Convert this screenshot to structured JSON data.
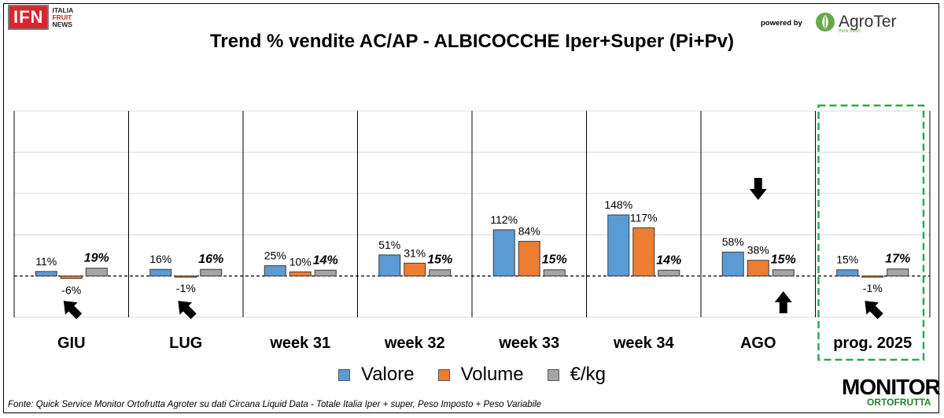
{
  "header": {
    "logo_ifn": "IFN",
    "logo_ifn_sub": [
      "ITALIA",
      "FRUIT",
      "NEWS"
    ],
    "powered_by": "powered by",
    "agroter": "AgroTer",
    "agroter_tag": "think fresh"
  },
  "footer": {
    "source": "Fonte: Quick Service Monitor Ortofrutta Agroter su dati Circana Liquid Data - Totale Italia Iper + super, Peso Imposto + Peso Variabile",
    "monitor_main": "MONITOR",
    "monitor_sub": "ORTOFRUTTA"
  },
  "chart_data": {
    "type": "bar",
    "title": "Trend % vendite AC/AP - ALBICOCCHE  Iper+Super (Pi+Pv)",
    "categories": [
      "GIU",
      "LUG",
      "week 31",
      "week 32",
      "week 33",
      "week 34",
      "AGO",
      "prog. 2025"
    ],
    "series": [
      {
        "name": "Valore",
        "color": "#5b9bd5",
        "values": [
          11,
          16,
          25,
          51,
          112,
          148,
          58,
          15
        ],
        "labels": [
          "11%",
          "16%",
          "25%",
          "51%",
          "112%",
          "148%",
          "58%",
          "15%"
        ]
      },
      {
        "name": "Volume",
        "color": "#ed7d31",
        "values": [
          -6,
          -1,
          10,
          31,
          84,
          117,
          38,
          -1
        ],
        "labels": [
          "-6%",
          "-1%",
          "10%",
          "31%",
          "84%",
          "117%",
          "38%",
          "-1%"
        ]
      },
      {
        "name": "€/kg",
        "color": "#a5a5a5",
        "values": [
          19,
          16,
          14,
          15,
          15,
          14,
          15,
          17
        ],
        "labels": [
          "19%",
          "16%",
          "14%",
          "15%",
          "15%",
          "14%",
          "15%",
          "17%"
        ]
      }
    ],
    "ylim": [
      -100,
      400
    ],
    "grid": true,
    "legend": "bottom",
    "highlighted_category": "prog. 2025",
    "annotations": [
      {
        "category": "GIU",
        "type": "arrow",
        "direction": "up-left"
      },
      {
        "category": "LUG",
        "type": "arrow",
        "direction": "up-left"
      },
      {
        "category": "AGO",
        "type": "arrow",
        "direction": "down"
      },
      {
        "category": "AGO",
        "type": "arrow",
        "direction": "up"
      },
      {
        "category": "prog. 2025",
        "type": "arrow",
        "direction": "up-left"
      }
    ]
  }
}
